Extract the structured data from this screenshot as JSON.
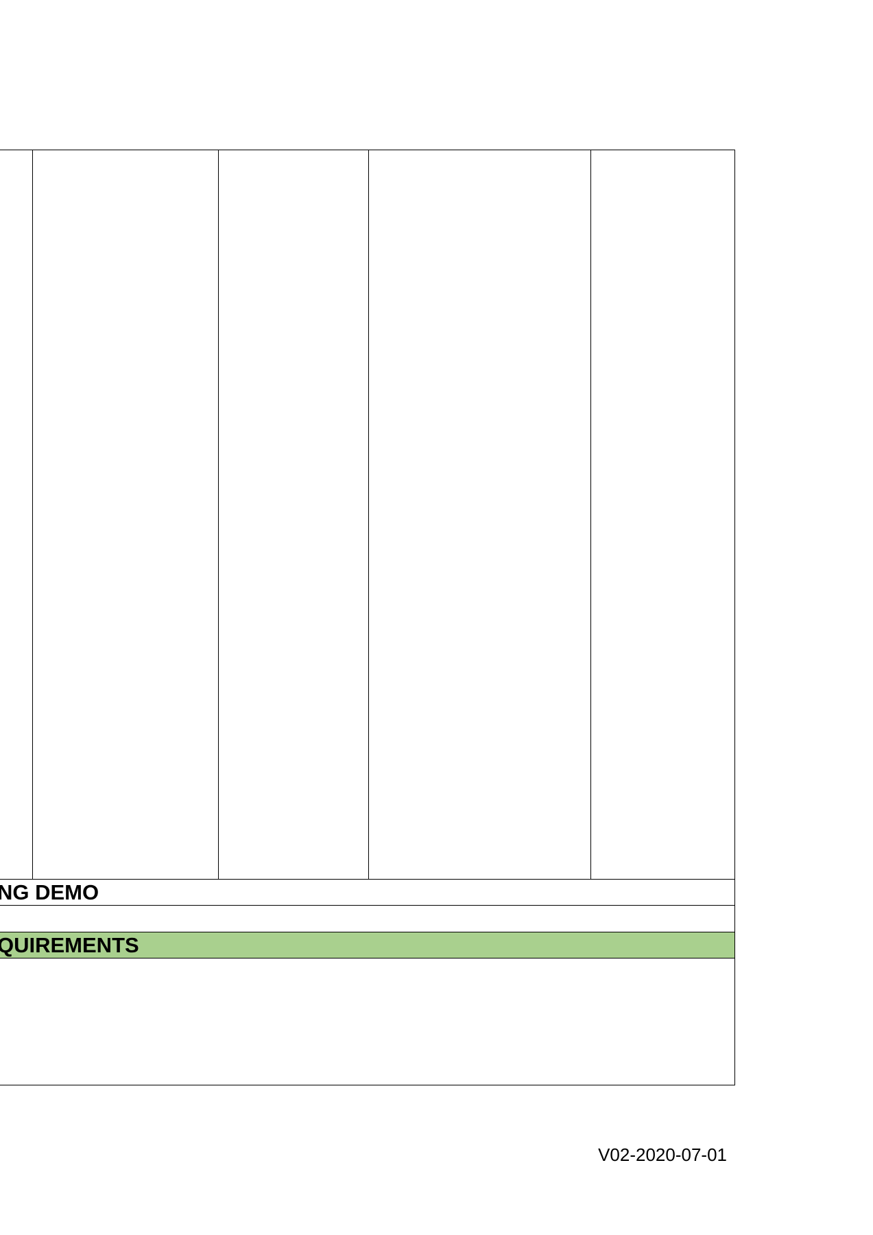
{
  "form": {
    "section_demo_label": "NG DEMO",
    "section_requirements_label": "QUIREMENTS",
    "requirements_background_color": "#a9d08e",
    "columns": [
      {
        "name": "col-1",
        "value": ""
      },
      {
        "name": "col-2",
        "value": ""
      },
      {
        "name": "col-3",
        "value": ""
      },
      {
        "name": "col-4",
        "value": ""
      },
      {
        "name": "col-5",
        "value": ""
      }
    ],
    "blank_row_value": "",
    "requirements_body_value": ""
  },
  "footer": {
    "version": "V02-2020-07-01"
  }
}
